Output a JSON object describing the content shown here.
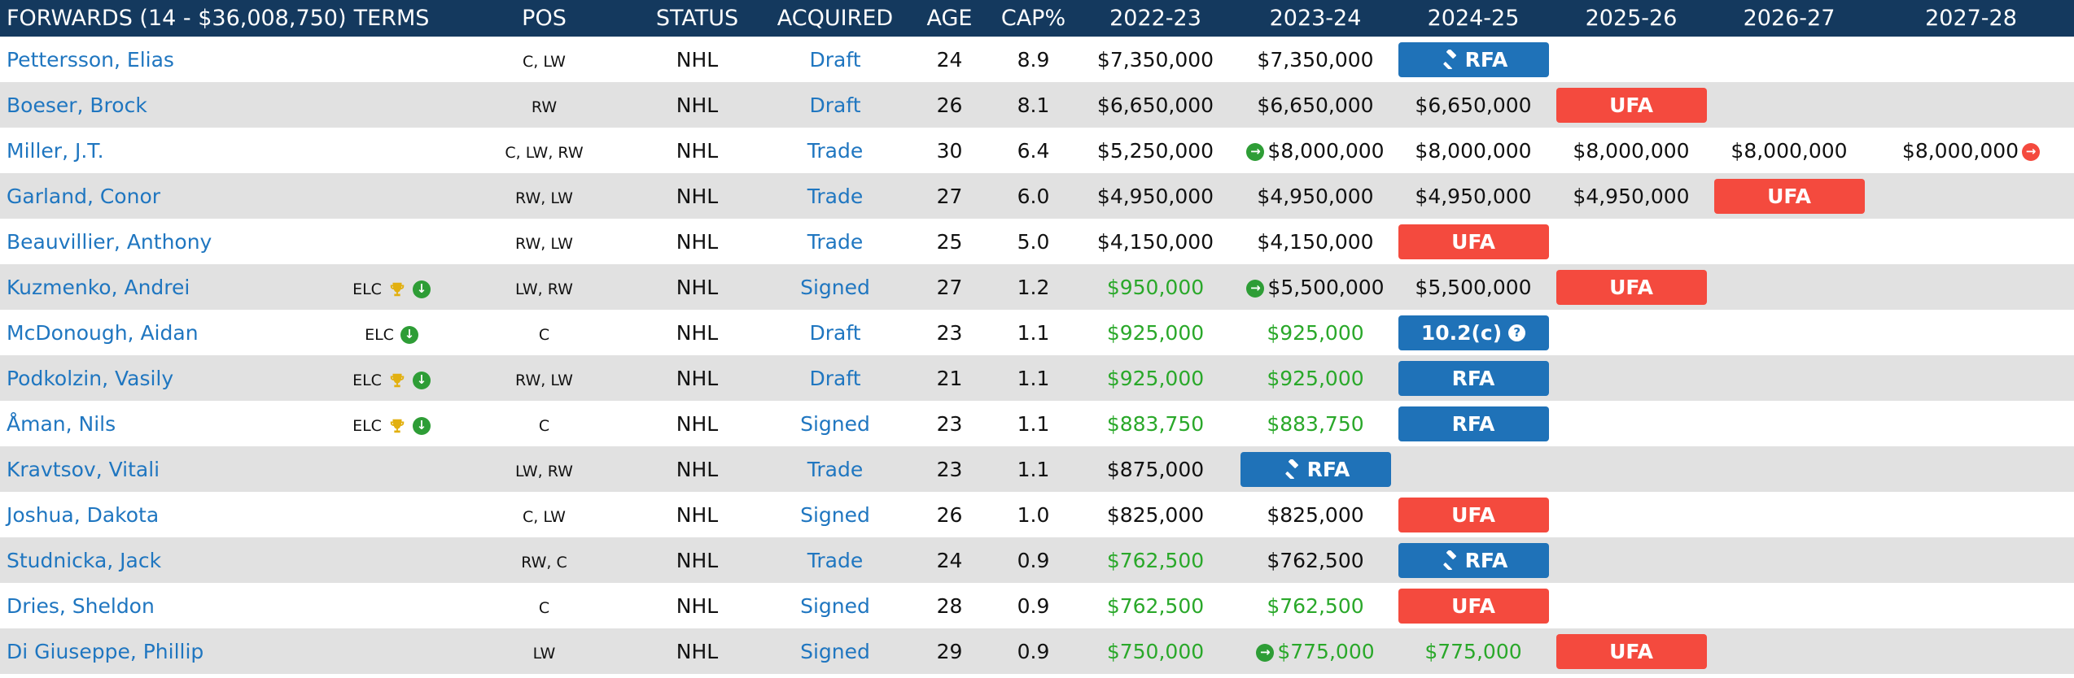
{
  "header": {
    "section": "FORWARDS (14 - $36,008,750)",
    "terms": "TERMS",
    "pos": "POS",
    "status": "STATUS",
    "acquired": "ACQUIRED",
    "age": "AGE",
    "cap": "CAP%",
    "years": [
      "2022-23",
      "2023-24",
      "2024-25",
      "2025-26",
      "2026-27",
      "2027-28"
    ]
  },
  "rows": [
    {
      "name": "Pettersson, Elias",
      "terms": "",
      "pos": "C, LW",
      "status": "NHL",
      "acquired": "Draft",
      "age": "24",
      "cap": "8.9",
      "years": [
        {
          "v": "$7,350,000"
        },
        {
          "v": "$7,350,000"
        },
        {
          "pill": "RFA",
          "kind": "rfa",
          "icon": "gavel"
        },
        {},
        {},
        {}
      ]
    },
    {
      "name": "Boeser, Brock",
      "terms": "",
      "pos": "RW",
      "status": "NHL",
      "acquired": "Draft",
      "age": "26",
      "cap": "8.1",
      "years": [
        {
          "v": "$6,650,000"
        },
        {
          "v": "$6,650,000"
        },
        {
          "v": "$6,650,000"
        },
        {
          "pill": "UFA",
          "kind": "ufa"
        },
        {},
        {}
      ]
    },
    {
      "name": "Miller, J.T.",
      "terms": "",
      "pos": "C, LW, RW",
      "status": "NHL",
      "acquired": "Trade",
      "age": "30",
      "cap": "6.4",
      "years": [
        {
          "v": "$5,250,000"
        },
        {
          "v": "$8,000,000",
          "pre": "arrow"
        },
        {
          "v": "$8,000,000"
        },
        {
          "v": "$8,000,000"
        },
        {
          "v": "$8,000,000"
        },
        {
          "v": "$8,000,000",
          "post": "arrow-red"
        }
      ]
    },
    {
      "name": "Garland, Conor",
      "terms": "",
      "pos": "RW, LW",
      "status": "NHL",
      "acquired": "Trade",
      "age": "27",
      "cap": "6.0",
      "years": [
        {
          "v": "$4,950,000"
        },
        {
          "v": "$4,950,000"
        },
        {
          "v": "$4,950,000"
        },
        {
          "v": "$4,950,000"
        },
        {
          "pill": "UFA",
          "kind": "ufa"
        },
        {}
      ]
    },
    {
      "name": "Beauvillier, Anthony",
      "terms": "",
      "pos": "RW, LW",
      "status": "NHL",
      "acquired": "Trade",
      "age": "25",
      "cap": "5.0",
      "years": [
        {
          "v": "$4,150,000"
        },
        {
          "v": "$4,150,000"
        },
        {
          "pill": "UFA",
          "kind": "ufa"
        },
        {},
        {},
        {}
      ]
    },
    {
      "name": "Kuzmenko, Andrei",
      "terms": "ELC",
      "terms_icons": [
        "trophy",
        "down"
      ],
      "pos": "LW, RW",
      "status": "NHL",
      "acquired": "Signed",
      "age": "27",
      "cap": "1.2",
      "years": [
        {
          "v": "$950,000",
          "green": true
        },
        {
          "v": "$5,500,000",
          "pre": "arrow"
        },
        {
          "v": "$5,500,000"
        },
        {
          "pill": "UFA",
          "kind": "ufa"
        },
        {},
        {}
      ]
    },
    {
      "name": "McDonough, Aidan",
      "terms": "ELC",
      "terms_icons": [
        "down"
      ],
      "pos": "C",
      "status": "NHL",
      "acquired": "Draft",
      "age": "23",
      "cap": "1.1",
      "years": [
        {
          "v": "$925,000",
          "green": true
        },
        {
          "v": "$925,000",
          "green": true
        },
        {
          "pill": "10.2(c)",
          "kind": "rfa",
          "icon": "help"
        },
        {},
        {},
        {}
      ]
    },
    {
      "name": "Podkolzin, Vasily",
      "terms": "ELC",
      "terms_icons": [
        "trophy",
        "down"
      ],
      "pos": "RW, LW",
      "status": "NHL",
      "acquired": "Draft",
      "age": "21",
      "cap": "1.1",
      "years": [
        {
          "v": "$925,000",
          "green": true
        },
        {
          "v": "$925,000",
          "green": true
        },
        {
          "pill": "RFA",
          "kind": "rfa"
        },
        {},
        {},
        {}
      ]
    },
    {
      "name": "Åman, Nils",
      "terms": "ELC",
      "terms_icons": [
        "trophy",
        "down"
      ],
      "pos": "C",
      "status": "NHL",
      "acquired": "Signed",
      "age": "23",
      "cap": "1.1",
      "years": [
        {
          "v": "$883,750",
          "green": true
        },
        {
          "v": "$883,750",
          "green": true
        },
        {
          "pill": "RFA",
          "kind": "rfa"
        },
        {},
        {},
        {}
      ]
    },
    {
      "name": "Kravtsov, Vitali",
      "terms": "",
      "pos": "LW, RW",
      "status": "NHL",
      "acquired": "Trade",
      "age": "23",
      "cap": "1.1",
      "years": [
        {
          "v": "$875,000"
        },
        {
          "pill": "RFA",
          "kind": "rfa",
          "icon": "gavel"
        },
        {},
        {},
        {},
        {}
      ]
    },
    {
      "name": "Joshua, Dakota",
      "terms": "",
      "pos": "C, LW",
      "status": "NHL",
      "acquired": "Signed",
      "age": "26",
      "cap": "1.0",
      "years": [
        {
          "v": "$825,000"
        },
        {
          "v": "$825,000"
        },
        {
          "pill": "UFA",
          "kind": "ufa"
        },
        {},
        {},
        {}
      ]
    },
    {
      "name": "Studnicka, Jack",
      "terms": "",
      "pos": "RW, C",
      "status": "NHL",
      "acquired": "Trade",
      "age": "24",
      "cap": "0.9",
      "years": [
        {
          "v": "$762,500",
          "green": true
        },
        {
          "v": "$762,500"
        },
        {
          "pill": "RFA",
          "kind": "rfa",
          "icon": "gavel"
        },
        {},
        {},
        {}
      ]
    },
    {
      "name": "Dries, Sheldon",
      "terms": "",
      "pos": "C",
      "status": "NHL",
      "acquired": "Signed",
      "age": "28",
      "cap": "0.9",
      "years": [
        {
          "v": "$762,500",
          "green": true
        },
        {
          "v": "$762,500",
          "green": true
        },
        {
          "pill": "UFA",
          "kind": "ufa"
        },
        {},
        {},
        {}
      ]
    },
    {
      "name": "Di Giuseppe, Phillip",
      "terms": "",
      "pos": "LW",
      "status": "NHL",
      "acquired": "Signed",
      "age": "29",
      "cap": "0.9",
      "years": [
        {
          "v": "$750,000",
          "green": true
        },
        {
          "v": "$775,000",
          "green": true,
          "pre": "arrow"
        },
        {
          "v": "$775,000",
          "green": true
        },
        {
          "pill": "UFA",
          "kind": "ufa"
        },
        {},
        {}
      ]
    }
  ],
  "colors": {
    "header_bg": "#14395e",
    "rfa": "#1f72b8",
    "ufa": "#f44a3e",
    "link": "#1f76c0",
    "green_text": "#2aa82a",
    "row_alt": "#e1e1e1"
  }
}
